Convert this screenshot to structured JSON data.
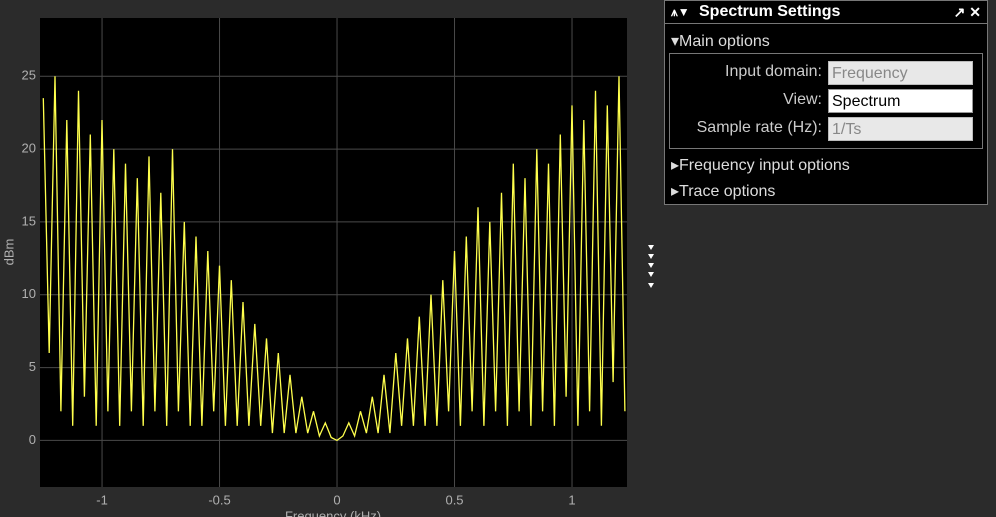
{
  "chart_data": {
    "type": "line",
    "ylabel": "dBm",
    "xlabel": "Frequency (kHz)",
    "x": [
      -1.25,
      -1.225,
      -1.2,
      -1.175,
      -1.15,
      -1.125,
      -1.1,
      -1.075,
      -1.05,
      -1.025,
      -1.0,
      -0.975,
      -0.95,
      -0.925,
      -0.9,
      -0.875,
      -0.85,
      -0.825,
      -0.8,
      -0.775,
      -0.75,
      -0.725,
      -0.7,
      -0.675,
      -0.65,
      -0.625,
      -0.6,
      -0.575,
      -0.55,
      -0.525,
      -0.5,
      -0.475,
      -0.45,
      -0.425,
      -0.4,
      -0.375,
      -0.35,
      -0.325,
      -0.3,
      -0.275,
      -0.25,
      -0.225,
      -0.2,
      -0.175,
      -0.15,
      -0.125,
      -0.1,
      -0.075,
      -0.05,
      -0.025,
      0,
      0.025,
      0.05,
      0.075,
      0.1,
      0.125,
      0.15,
      0.175,
      0.2,
      0.225,
      0.25,
      0.275,
      0.3,
      0.325,
      0.35,
      0.375,
      0.4,
      0.425,
      0.45,
      0.475,
      0.5,
      0.525,
      0.55,
      0.575,
      0.6,
      0.625,
      0.65,
      0.675,
      0.7,
      0.725,
      0.75,
      0.775,
      0.8,
      0.825,
      0.85,
      0.875,
      0.9,
      0.925,
      0.95,
      0.975,
      1.0,
      1.025,
      1.05,
      1.075,
      1.1,
      1.125,
      1.15,
      1.175,
      1.2,
      1.225
    ],
    "values": [
      23.5,
      6,
      25,
      2,
      22,
      1,
      24,
      3,
      21,
      1,
      22,
      2,
      20,
      1,
      19,
      2,
      18,
      1,
      19.5,
      2,
      17,
      1,
      20,
      2,
      15,
      1,
      14,
      1,
      13,
      2,
      12,
      1,
      11,
      1,
      9.5,
      1,
      8,
      1,
      7,
      0.5,
      6,
      0.5,
      4.5,
      0.5,
      3,
      0.5,
      2,
      0.3,
      1.2,
      0.2,
      0,
      0.3,
      1.2,
      0.3,
      2,
      0.5,
      3,
      0.5,
      4.5,
      0.5,
      6,
      1,
      7,
      1,
      8.5,
      1,
      10,
      1,
      11,
      2,
      13,
      1,
      14,
      2,
      16,
      1,
      15,
      2,
      17,
      1,
      19,
      2,
      18,
      1,
      20,
      2,
      19,
      1,
      21,
      3,
      23,
      1,
      22,
      2,
      24,
      1,
      23,
      4,
      25,
      2
    ],
    "color": "#ffff4d",
    "xlim": [
      -1.264,
      1.234
    ],
    "ylim": [
      -3.2,
      29
    ],
    "xticks": [
      -1,
      -0.5,
      0,
      0.5,
      1
    ],
    "yticks": [
      0,
      5,
      10,
      15,
      20,
      25
    ],
    "grid": true
  },
  "panel": {
    "title": "Spectrum Settings",
    "section": "Main options",
    "fields": [
      {
        "label": "Input domain:",
        "value": "Frequency"
      },
      {
        "label": "View:",
        "value": "Spectrum"
      },
      {
        "label": "Sample rate (Hz):",
        "value": "1/Ts"
      }
    ],
    "sections": [
      "Frequency input options",
      "Trace options"
    ]
  }
}
